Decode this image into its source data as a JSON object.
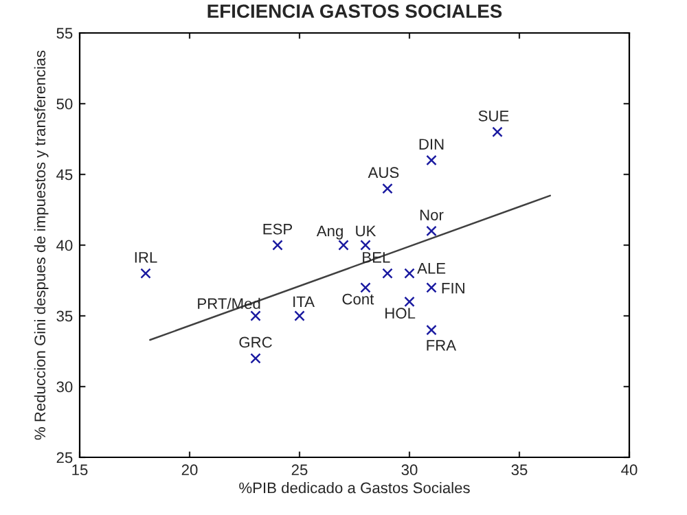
{
  "chart_data": {
    "type": "scatter",
    "title": "EFICIENCIA GASTOS SOCIALES",
    "xlabel": "%PIB dedicado a Gastos Sociales",
    "ylabel": "% Reduccion Gini despues de impuestos y transferencias",
    "series": [
      {
        "color": "#1a1aa0",
        "marker": "cross",
        "x": [
          18,
          24,
          27,
          28,
          29,
          31,
          34,
          31,
          29,
          30,
          31,
          28,
          30,
          31,
          23,
          25,
          23
        ],
        "values": [
          38,
          40,
          40,
          40,
          44,
          46,
          48,
          41,
          38,
          38,
          37,
          37,
          36,
          34,
          35,
          35,
          32
        ]
      },
      {
        "type": "line",
        "color": "#404040",
        "marker": "none",
        "line_style": "solid",
        "x": [
          18.2,
          36.4
        ],
        "values": [
          33.3,
          43.5
        ]
      }
    ],
    "annotations": [
      {
        "text": "IRL",
        "x": 18,
        "y": 38
      },
      {
        "text": "ESP",
        "x": 24,
        "y": 40
      },
      {
        "text": "Ang",
        "x": 27,
        "y": 40
      },
      {
        "text": "UK",
        "x": 28,
        "y": 40
      },
      {
        "text": "AUS",
        "x": 29,
        "y": 44
      },
      {
        "text": "DIN",
        "x": 31,
        "y": 46
      },
      {
        "text": "SUE",
        "x": 34,
        "y": 48
      },
      {
        "text": "Nor",
        "x": 31,
        "y": 41
      },
      {
        "text": "BEL",
        "x": 29,
        "y": 38
      },
      {
        "text": "ALE",
        "x": 30,
        "y": 38
      },
      {
        "text": "FIN",
        "x": 31,
        "y": 37
      },
      {
        "text": "Cont",
        "x": 28,
        "y": 37
      },
      {
        "text": "HOL",
        "x": 30,
        "y": 36
      },
      {
        "text": "FRA",
        "x": 31,
        "y": 34
      },
      {
        "text": "PRT/Med",
        "x": 23,
        "y": 35
      },
      {
        "text": "ITA",
        "x": 25,
        "y": 35
      },
      {
        "text": "GRC",
        "x": 23,
        "y": 32
      }
    ],
    "xlim": [
      15,
      40
    ],
    "ylim": [
      25,
      55
    ],
    "xticks": [
      15,
      20,
      25,
      30,
      35,
      40
    ],
    "yticks": [
      25,
      30,
      35,
      40,
      45,
      50,
      55
    ],
    "grid": false,
    "legend": false
  }
}
